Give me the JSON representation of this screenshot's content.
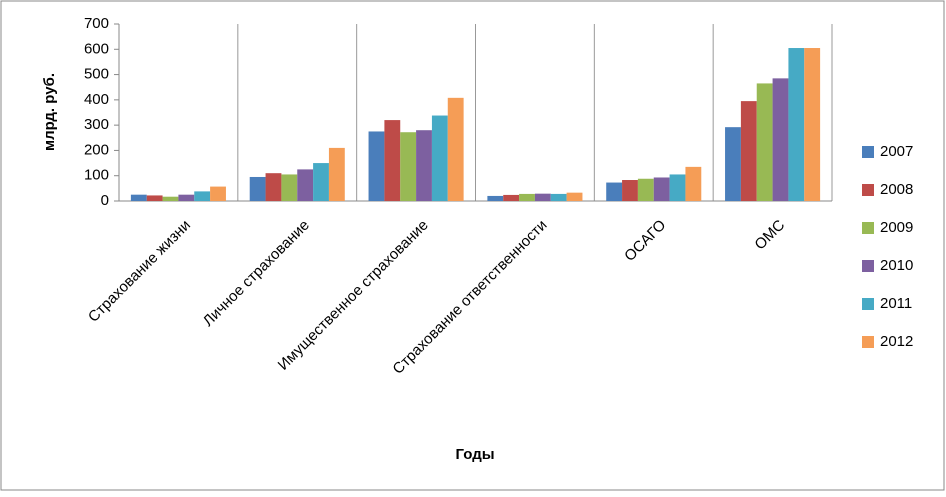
{
  "chart_data": {
    "type": "bar",
    "x_label": "Годы",
    "y_label": "млрд. руб.",
    "categories": [
      "Страхование жизни",
      "Личное страхование",
      "Имущественное страхование",
      "Страхование ответственности",
      "ОСАГО",
      "ОМС"
    ],
    "series": [
      {
        "name": "2007",
        "color": "#4a7ebb",
        "values": [
          25,
          95,
          275,
          20,
          73,
          292
        ]
      },
      {
        "name": "2008",
        "color": "#be4b48",
        "values": [
          22,
          110,
          320,
          24,
          83,
          395
        ]
      },
      {
        "name": "2009",
        "color": "#98b954",
        "values": [
          17,
          105,
          272,
          28,
          88,
          465
        ]
      },
      {
        "name": "2010",
        "color": "#7d60a0",
        "values": [
          25,
          125,
          280,
          29,
          93,
          485
        ]
      },
      {
        "name": "2011",
        "color": "#46aac5",
        "values": [
          38,
          150,
          338,
          28,
          105,
          605
        ]
      },
      {
        "name": "2012",
        "color": "#f59d56",
        "values": [
          57,
          210,
          408,
          33,
          135,
          605
        ]
      }
    ],
    "ylim": [
      0,
      700
    ],
    "yticks": [
      0,
      100,
      200,
      300,
      400,
      500,
      600,
      700
    ],
    "legend": "right"
  }
}
